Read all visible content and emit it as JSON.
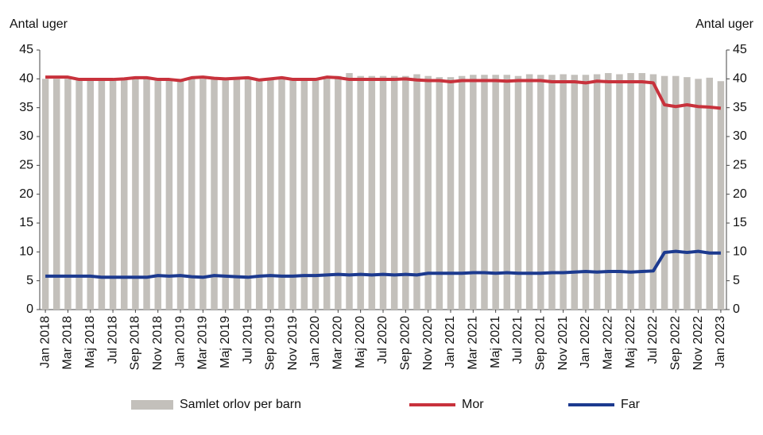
{
  "chart_data": {
    "type": "bar-line",
    "y_label": "Antal uger",
    "y2_label": "Antal uger",
    "categories": [
      "Jan 2018",
      null,
      "Mar 2018",
      null,
      "Maj 2018",
      null,
      "Jul 2018",
      null,
      "Sep 2018",
      null,
      "Nov 2018",
      null,
      "Jan 2019",
      null,
      "Mar 2019",
      null,
      "Maj 2019",
      null,
      "Jul 2019",
      null,
      "Sep 2019",
      null,
      "Nov 2019",
      null,
      "Jan 2020",
      null,
      "Mar 2020",
      null,
      "Maj 2020",
      null,
      "Jul 2020",
      null,
      "Sep 2020",
      null,
      "Nov 2020",
      null,
      "Jan 2021",
      null,
      "Mar 2021",
      null,
      "Maj 2021",
      null,
      "Jul 2021",
      null,
      "Sep 2021",
      null,
      "Nov 2021",
      null,
      "Jan 2022",
      null,
      "Mar 2022",
      null,
      "Maj 2022",
      null,
      "Jul 2022",
      null,
      "Sep 2022",
      null,
      "Nov 2022",
      null,
      "Jan 2023"
    ],
    "series": [
      {
        "name": "Samlet orlov per barn",
        "kind": "bar",
        "color": "#c3c0bb",
        "values": [
          40,
          40,
          40,
          40,
          40,
          40,
          40,
          40,
          40,
          40,
          40,
          40,
          40,
          40,
          40,
          40,
          40,
          40,
          40,
          40,
          40,
          40,
          40,
          40,
          40,
          40,
          40.5,
          41,
          40.5,
          40.5,
          40.5,
          40.5,
          40.5,
          40.8,
          40.5,
          40.3,
          40.3,
          40.5,
          40.7,
          40.7,
          40.7,
          40.7,
          40.5,
          40.8,
          40.7,
          40.7,
          40.8,
          40.7,
          40.7,
          40.8,
          41,
          40.8,
          41,
          41,
          40.8,
          40.5,
          40.5,
          40.3,
          40,
          40.2,
          39.6
        ]
      },
      {
        "name": "Mor",
        "kind": "line",
        "color": "#c8323c",
        "values": [
          40.3,
          40.3,
          40.3,
          39.9,
          39.9,
          39.9,
          39.9,
          40,
          40.2,
          40.2,
          39.9,
          39.9,
          39.7,
          40.2,
          40.3,
          40.1,
          40,
          40.1,
          40.2,
          39.8,
          40,
          40.2,
          39.9,
          39.9,
          39.9,
          40.3,
          40.2,
          39.9,
          39.9,
          39.9,
          39.9,
          39.9,
          40,
          39.8,
          39.7,
          39.7,
          39.5,
          39.7,
          39.7,
          39.7,
          39.7,
          39.6,
          39.7,
          39.7,
          39.7,
          39.5,
          39.5,
          39.5,
          39.3,
          39.6,
          39.5,
          39.5,
          39.5,
          39.5,
          39.3,
          35.5,
          35.2,
          35.5,
          35.2,
          35.1,
          34.9
        ]
      },
      {
        "name": "Far",
        "kind": "line",
        "color": "#1c3a8f",
        "values": [
          5.8,
          5.8,
          5.8,
          5.8,
          5.8,
          5.6,
          5.6,
          5.6,
          5.6,
          5.6,
          5.9,
          5.8,
          5.9,
          5.7,
          5.6,
          5.9,
          5.8,
          5.7,
          5.6,
          5.8,
          5.9,
          5.8,
          5.8,
          5.9,
          5.9,
          6,
          6.1,
          6,
          6.1,
          6,
          6.1,
          6,
          6.1,
          6,
          6.3,
          6.3,
          6.3,
          6.3,
          6.4,
          6.4,
          6.3,
          6.4,
          6.3,
          6.3,
          6.3,
          6.4,
          6.4,
          6.5,
          6.6,
          6.5,
          6.6,
          6.6,
          6.5,
          6.6,
          6.7,
          9.9,
          10.1,
          9.9,
          10.1,
          9.8,
          9.8
        ]
      }
    ],
    "ylim": [
      0,
      45
    ],
    "yticks": [
      0,
      5,
      10,
      15,
      20,
      25,
      30,
      35,
      40,
      45
    ],
    "y2lim": [
      0,
      45
    ],
    "y2ticks": [
      0,
      5,
      10,
      15,
      20,
      25,
      30,
      35,
      40,
      45
    ],
    "grid": false,
    "legend": "bottom"
  }
}
